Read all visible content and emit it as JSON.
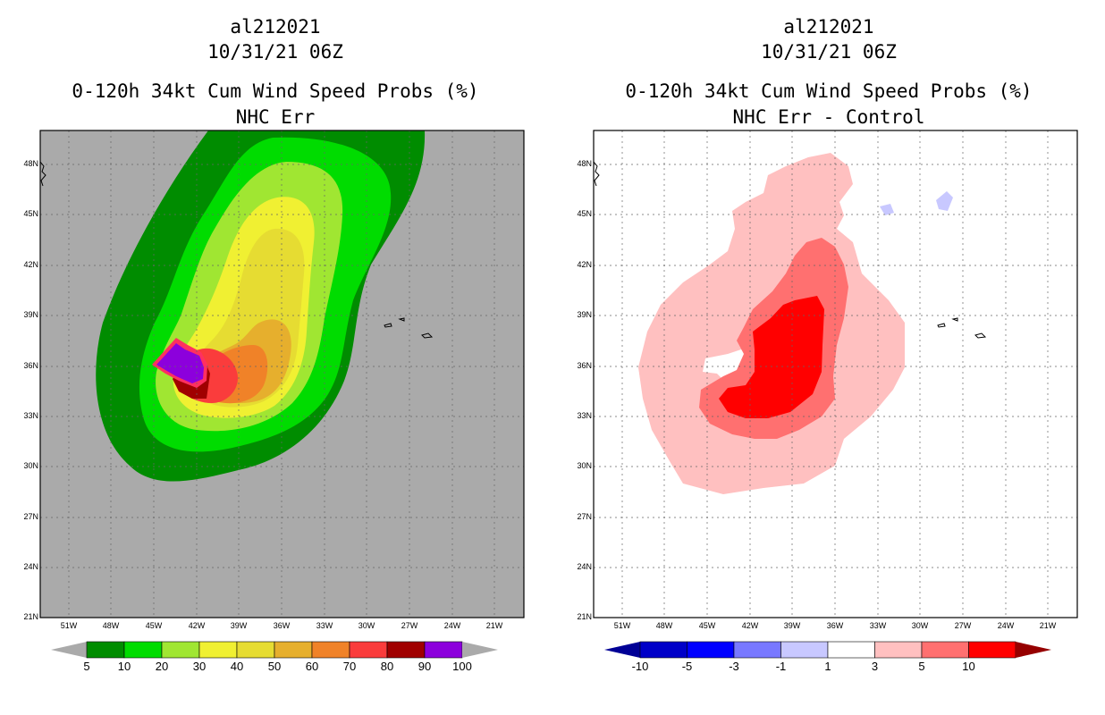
{
  "left_panel": {
    "storm_id": "al212021",
    "datetime": "10/31/21 06Z",
    "product": "0-120h 34kt Cum Wind Speed Probs (%)",
    "subtitle": "NHC Err",
    "colorbar": {
      "labels": [
        "5",
        "10",
        "20",
        "30",
        "40",
        "50",
        "60",
        "70",
        "80",
        "90",
        "100"
      ],
      "colors": [
        "#008c00",
        "#00dc00",
        "#a0e632",
        "#f0f032",
        "#e6dc32",
        "#e6af2d",
        "#f08228",
        "#fa3c3c",
        "#a00000",
        "#8c00dc"
      ],
      "extend_color": "#aaaaaa"
    },
    "background_color": "#aaaaaa"
  },
  "right_panel": {
    "storm_id": "al212021",
    "datetime": "10/31/21 06Z",
    "product": "0-120h 34kt Cum Wind Speed Probs (%)",
    "subtitle": "NHC Err - Control",
    "colorbar": {
      "labels": [
        "-10",
        "-5",
        "-3",
        "-1",
        "1",
        "3",
        "5",
        "10"
      ],
      "colors": [
        "#0000c8",
        "#0000ff",
        "#7878ff",
        "#c8c8ff",
        "#ffffff",
        "#ffc0c0",
        "#ff7070",
        "#ff0000"
      ],
      "low_extend_color": "#000096",
      "high_extend_color": "#960000"
    },
    "background_color": "#ffffff"
  },
  "map": {
    "lat_labels": [
      "48N",
      "45N",
      "42N",
      "39N",
      "36N",
      "33N",
      "30N",
      "27N",
      "24N",
      "21N"
    ],
    "lon_labels": [
      "51W",
      "48W",
      "45W",
      "42W",
      "39W",
      "36W",
      "33W",
      "30W",
      "27W",
      "24W",
      "21W"
    ],
    "lat_range": [
      21,
      50
    ],
    "lon_range": [
      53,
      19
    ]
  }
}
